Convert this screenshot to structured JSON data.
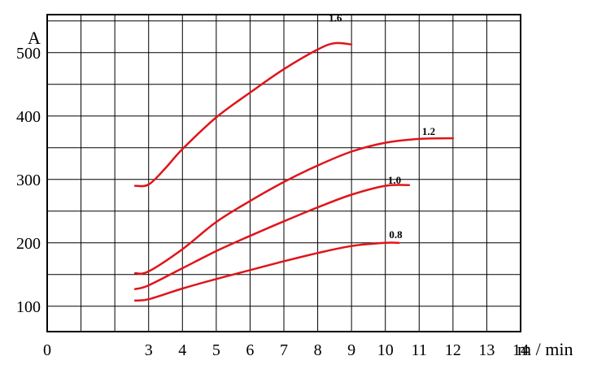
{
  "chart_data": {
    "type": "line",
    "ylabel": "A",
    "xlabel": "m / min",
    "xlim": [
      0,
      14
    ],
    "ylim": [
      60,
      560
    ],
    "x_ticks": [
      "0",
      "3",
      "4",
      "5",
      "6",
      "7",
      "8",
      "9",
      "10",
      "11",
      "12",
      "13",
      "14"
    ],
    "y_ticks": [
      "100",
      "200",
      "300",
      "400",
      "500"
    ],
    "grid": true,
    "curve_color": "#e0141b",
    "series": [
      {
        "name": "1.6",
        "points": [
          [
            2.6,
            290
          ],
          [
            3.0,
            292
          ],
          [
            3.5,
            318
          ],
          [
            4.0,
            348
          ],
          [
            5.0,
            398
          ],
          [
            6.0,
            437
          ],
          [
            7.0,
            474
          ],
          [
            8.0,
            505
          ],
          [
            8.5,
            515
          ],
          [
            9.0,
            513
          ]
        ]
      },
      {
        "name": "1.2",
        "points": [
          [
            2.6,
            152
          ],
          [
            3.0,
            155
          ],
          [
            4.0,
            190
          ],
          [
            5.0,
            233
          ],
          [
            6.0,
            266
          ],
          [
            7.0,
            296
          ],
          [
            8.0,
            322
          ],
          [
            9.0,
            344
          ],
          [
            10.0,
            358
          ],
          [
            11.0,
            364
          ],
          [
            12.0,
            365
          ]
        ]
      },
      {
        "name": "1.0",
        "points": [
          [
            2.6,
            127
          ],
          [
            3.0,
            133
          ],
          [
            4.0,
            160
          ],
          [
            5.0,
            187
          ],
          [
            6.0,
            211
          ],
          [
            7.0,
            234
          ],
          [
            8.0,
            256
          ],
          [
            9.0,
            276
          ],
          [
            10.0,
            290
          ],
          [
            10.7,
            291
          ]
        ]
      },
      {
        "name": "0.8",
        "points": [
          [
            2.6,
            109
          ],
          [
            3.0,
            111
          ],
          [
            4.0,
            128
          ],
          [
            5.0,
            143
          ],
          [
            6.0,
            157
          ],
          [
            7.0,
            171
          ],
          [
            8.0,
            184
          ],
          [
            9.0,
            195
          ],
          [
            10.0,
            200
          ],
          [
            10.4,
            200
          ]
        ]
      }
    ]
  }
}
